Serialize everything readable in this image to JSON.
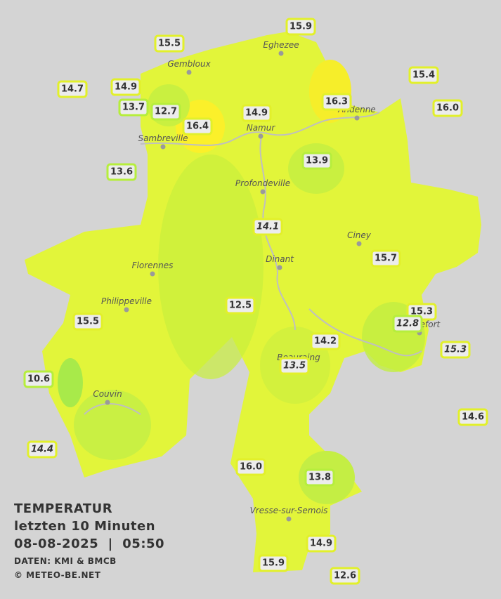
{
  "title": {
    "heading": "TEMPERATUR",
    "period": "letzten 10 Minuten",
    "datetime": "08-08-2025  |  05:50",
    "source": "DATEN: KMI & BMCB",
    "copyright": "© METEO-BE.NET"
  },
  "cities": [
    "Eghezee",
    "Gembloux",
    "Andenne",
    "Namur",
    "Sambreville",
    "Profondeville",
    "Ciney",
    "Dinant",
    "Florennes",
    "Philippeville",
    "Rochefort",
    "Beauraing",
    "Couvin",
    "Vresse-sur-Semois"
  ],
  "stations": [
    "15.9",
    "15.5",
    "15.4",
    "14.7",
    "14.9",
    "16.3",
    "16.0",
    "13.7",
    "12.7",
    "14.9",
    "16.4",
    "13.9",
    "13.6",
    "14.1",
    "15.7",
    "12.5",
    "15.3",
    "12.8",
    "15.5",
    "14.2",
    "15.3",
    "13.5",
    "10.6",
    "14.6",
    "14.4",
    "16.0",
    "13.8",
    "14.9",
    "15.9",
    "12.6"
  ]
}
